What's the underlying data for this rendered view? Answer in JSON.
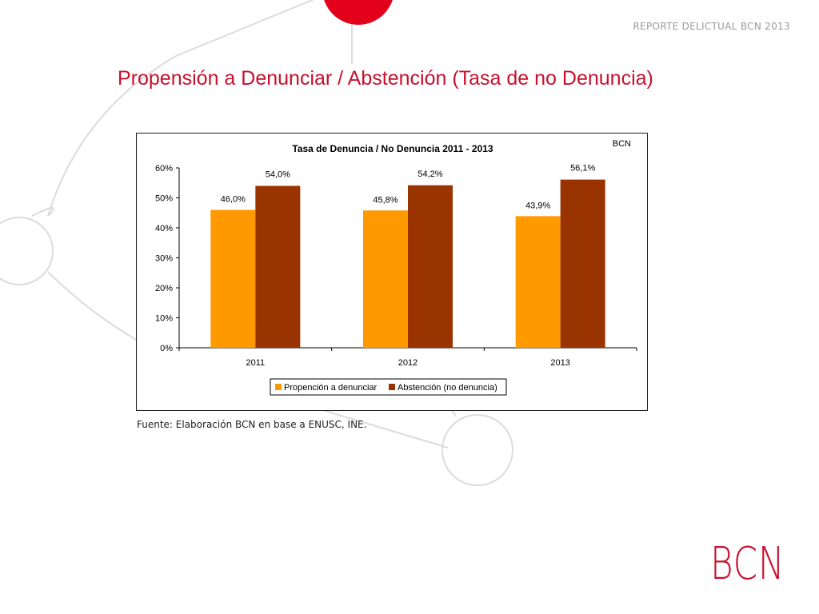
{
  "header": {
    "report_label": "REPORTE DELICTUAL BCN 2013"
  },
  "slide": {
    "title": "Propensión a Denunciar / Abstención (Tasa de no Denuncia)"
  },
  "source": {
    "text": "Fuente: Elaboración BCN en base a ENUSC, INE."
  },
  "brand": {
    "logo_text": "BCN",
    "accent_color": "#c8102e"
  },
  "chart_data": {
    "type": "bar",
    "title": "Tasa de Denuncia / No Denuncia 2011 - 2013",
    "watermark": "BCN",
    "categories": [
      "2011",
      "2012",
      "2013"
    ],
    "series": [
      {
        "name": "Propención a denunciar",
        "values": [
          46.0,
          45.8,
          43.9
        ],
        "labels": [
          "46,0%",
          "45,8%",
          "43,9%"
        ],
        "color": "#ff9900"
      },
      {
        "name": "Abstención (no denuncia)",
        "values": [
          54.0,
          54.2,
          56.1
        ],
        "labels": [
          "54,0%",
          "54,2%",
          "56,1%"
        ],
        "color": "#993300"
      }
    ],
    "ylim": [
      0,
      60
    ],
    "yticks": [
      "0%",
      "10%",
      "20%",
      "30%",
      "40%",
      "50%",
      "60%"
    ],
    "xlabel": "",
    "ylabel": "",
    "grid": false,
    "legend_position": "bottom"
  }
}
